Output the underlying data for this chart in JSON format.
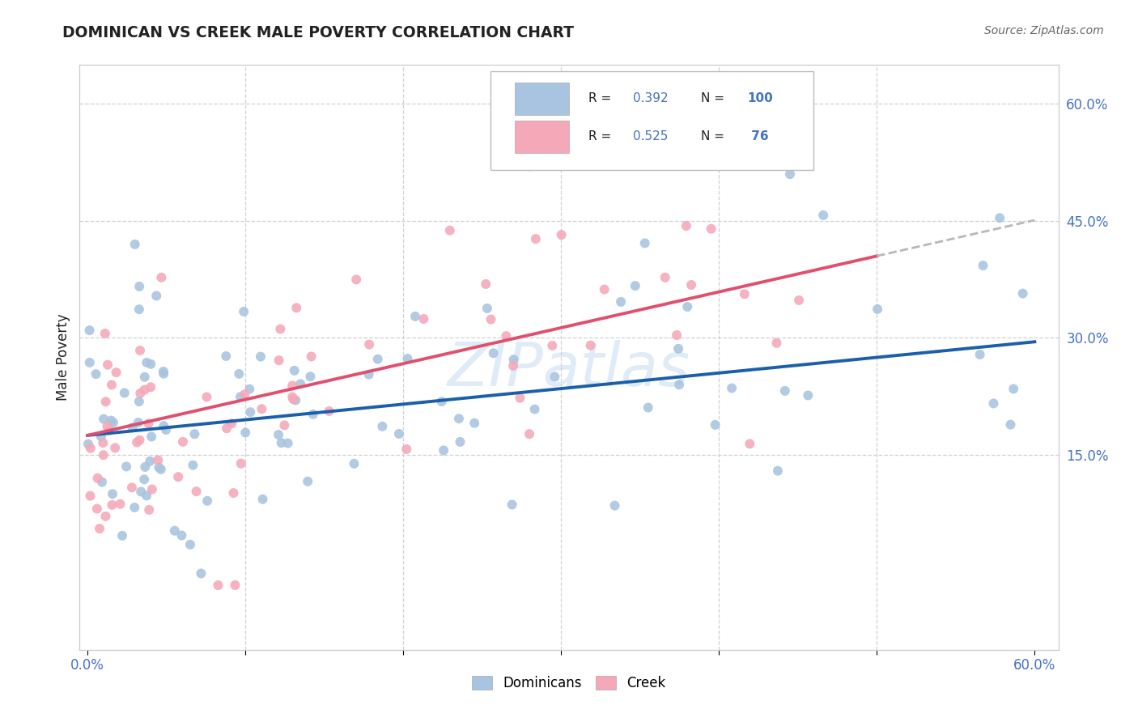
{
  "title": "DOMINICAN VS CREEK MALE POVERTY CORRELATION CHART",
  "source": "Source: ZipAtlas.com",
  "ylabel": "Male Poverty",
  "watermark": "ZIPatlas",
  "xlim": [
    0.0,
    0.6
  ],
  "ylim": [
    -0.1,
    0.65
  ],
  "ytick_labels_right": [
    "60.0%",
    "45.0%",
    "30.0%",
    "15.0%"
  ],
  "ytick_vals_right": [
    0.6,
    0.45,
    0.3,
    0.15
  ],
  "dominican_color": "#a8c4e0",
  "creek_color": "#f4a8b8",
  "dominican_line_color": "#1a5faa",
  "creek_line_color": "#e0506e",
  "creek_dashed_color": "#b8b8b8",
  "R_dominican": 0.392,
  "N_dominican": 100,
  "R_creek": 0.525,
  "N_creek": 76,
  "legend_label1": "Dominicans",
  "legend_label2": "Creek",
  "background_color": "#ffffff",
  "legend_text_color": "#4472c4",
  "title_color": "#222222",
  "source_color": "#666666",
  "ylabel_color": "#222222",
  "tick_color": "#4472c4",
  "grid_color": "#d0d0d8",
  "dom_line_start_y": 0.175,
  "dom_line_end_y": 0.295,
  "creek_line_start_y": 0.175,
  "creek_line_end_y": 0.405
}
